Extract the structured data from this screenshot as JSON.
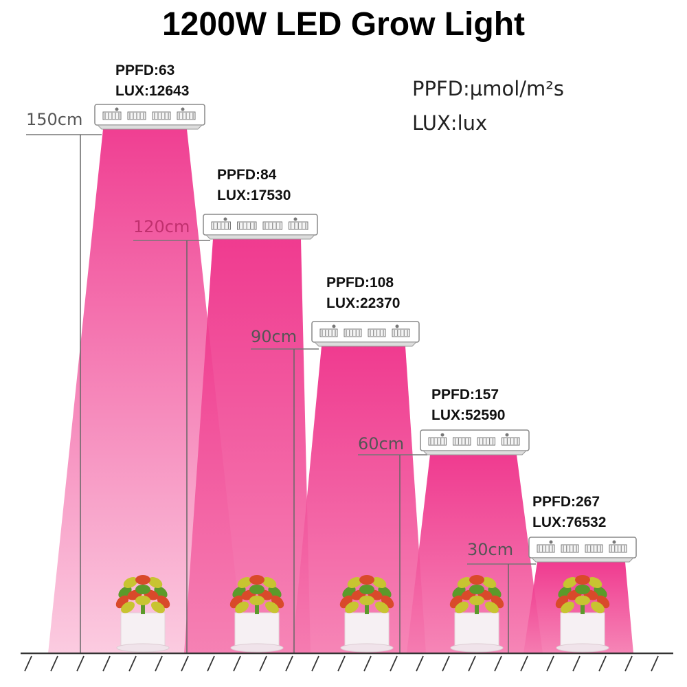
{
  "title": "1200W LED Grow Light",
  "legend": {
    "ppfd_unit": "PPFD:μmol/m²s",
    "lux_unit": "LUX:lux"
  },
  "colors": {
    "beam": "#ee2a86",
    "beam_light": "#fbc6dd",
    "lamp_body": "#ffffff",
    "lamp_outline": "#888888",
    "ground": "#333333",
    "leaf_red": "#d94a2a",
    "leaf_yellow": "#c8c431",
    "leaf_green": "#5c9a2a",
    "pot": "#f6f0f3"
  },
  "positions": [
    {
      "height": "150cm",
      "ppfd": "PPFD:63",
      "lux": "LUX:12643"
    },
    {
      "height": "120cm",
      "ppfd": "PPFD:84",
      "lux": "LUX:17530"
    },
    {
      "height": "90cm",
      "ppfd": "PPFD:108",
      "lux": "LUX:22370"
    },
    {
      "height": "60cm",
      "ppfd": "PPFD:157",
      "lux": "LUX:52590"
    },
    {
      "height": "30cm",
      "ppfd": "PPFD:267",
      "lux": "LUX:76532"
    }
  ]
}
